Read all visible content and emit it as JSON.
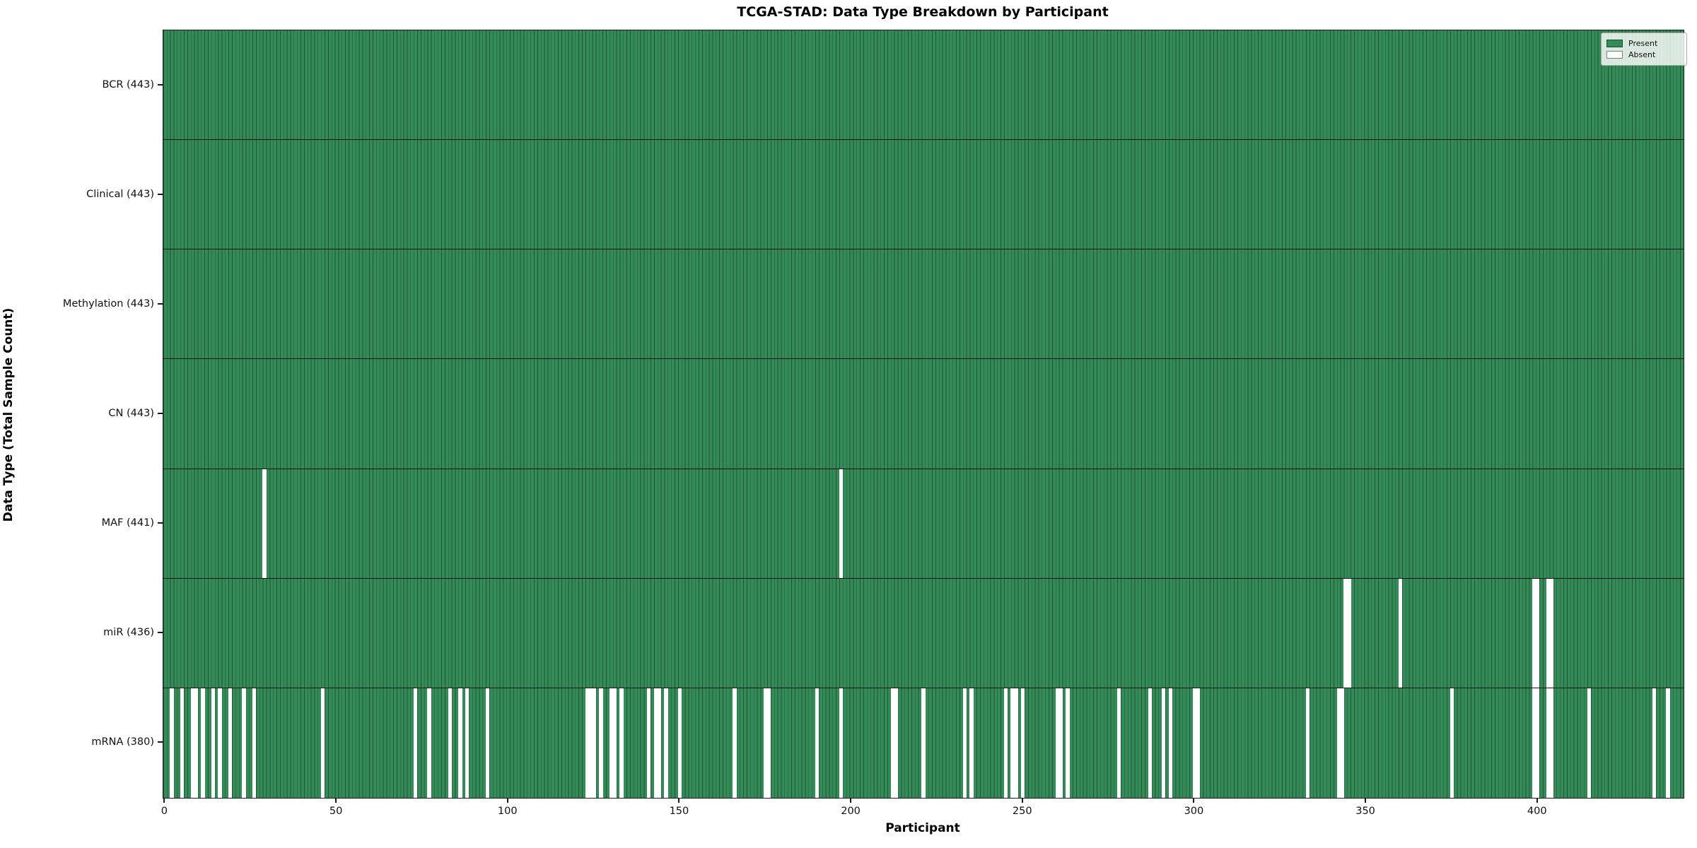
{
  "chart_data": {
    "type": "heatmap",
    "title": "TCGA-STAD: Data Type Breakdown by Participant",
    "xlabel": "Participant",
    "ylabel": "Data Type (Total Sample Count)",
    "legend": [
      {
        "label": "Present",
        "color": "#2e8b57"
      },
      {
        "label": "Absent",
        "color": "#ffffff"
      }
    ],
    "legend_position": "upper right",
    "n_participants": 443,
    "x_range": [
      0,
      442
    ],
    "x_ticks": [
      0,
      50,
      100,
      150,
      200,
      250,
      300,
      350,
      400
    ],
    "colors": {
      "present_fill": "#348b57",
      "bar_edge": "rgba(0,25,12,0.45)",
      "absent_fill": "#ffffff",
      "row_separator": "#141414"
    },
    "rows": [
      {
        "label": "BCR (443)",
        "data_type": "BCR",
        "total_samples": 443,
        "absent_count": 0,
        "absent_participants": []
      },
      {
        "label": "Clinical (443)",
        "data_type": "Clinical",
        "total_samples": 443,
        "absent_count": 0,
        "absent_participants": []
      },
      {
        "label": "Methylation (443)",
        "data_type": "Methylation",
        "total_samples": 443,
        "absent_count": 0,
        "absent_participants": []
      },
      {
        "label": "CN (443)",
        "data_type": "CN",
        "total_samples": 443,
        "absent_count": 0,
        "absent_participants": []
      },
      {
        "label": "MAF (441)",
        "data_type": "MAF",
        "total_samples": 441,
        "absent_count": 2,
        "absent_participants": [
          29,
          197
        ]
      },
      {
        "label": "miR (436)",
        "data_type": "miR",
        "total_samples": 436,
        "absent_count": 7,
        "absent_participants": [
          344,
          345,
          360,
          399,
          400,
          403,
          404
        ]
      },
      {
        "label": "mRNA (380)",
        "data_type": "mRNA",
        "total_samples": 380,
        "absent_count": 63,
        "absent_participants": [
          2,
          5,
          8,
          9,
          11,
          14,
          16,
          19,
          23,
          26,
          46,
          73,
          77,
          83,
          86,
          88,
          94,
          123,
          124,
          125,
          127,
          130,
          131,
          133,
          141,
          143,
          144,
          146,
          150,
          166,
          175,
          176,
          190,
          197,
          212,
          213,
          221,
          233,
          235,
          245,
          247,
          248,
          250,
          260,
          261,
          263,
          278,
          287,
          291,
          293,
          300,
          301,
          333,
          342,
          343,
          375,
          399,
          400,
          403,
          404,
          415,
          434,
          438
        ]
      }
    ]
  }
}
